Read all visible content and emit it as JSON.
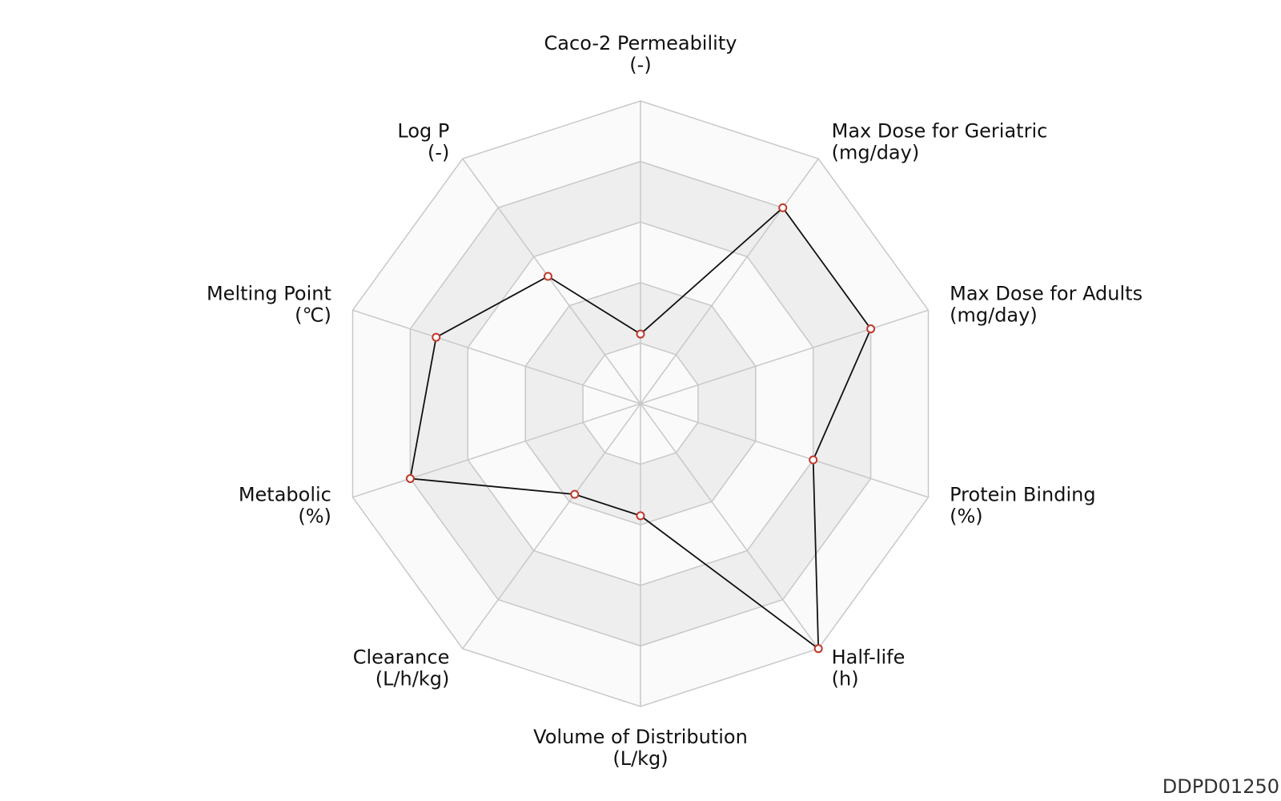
{
  "chart_data": {
    "type": "radar",
    "axes": [
      {
        "name": "Caco-2 Permeability",
        "unit": "(-)"
      },
      {
        "name": "Max Dose for Geriatric",
        "unit": "(mg/day)"
      },
      {
        "name": "Max Dose for Adults",
        "unit": "(mg/day)"
      },
      {
        "name": "Protein Binding",
        "unit": "(%)"
      },
      {
        "name": "Half-life",
        "unit": "(h)"
      },
      {
        "name": "Volume of Distribution",
        "unit": "(L/kg)"
      },
      {
        "name": "Clearance",
        "unit": "(L/h/kg)"
      },
      {
        "name": "Metabolic",
        "unit": "(%)"
      },
      {
        "name": "Melting Point",
        "unit": "(℃)"
      },
      {
        "name": "Log P",
        "unit": "(-)"
      }
    ],
    "values": [
      0.23,
      0.8,
      0.8,
      0.6,
      1.0,
      0.37,
      0.37,
      0.8,
      0.71,
      0.52
    ],
    "rings": 5,
    "range": [
      0,
      1
    ],
    "colors": {
      "line": "#111111",
      "marker": "#c0392b",
      "grid": "#c8c8c8",
      "band_shaded": "#eeeeee",
      "band_light": "#fafafa"
    }
  },
  "footer": {
    "id": "DDPD01250"
  }
}
